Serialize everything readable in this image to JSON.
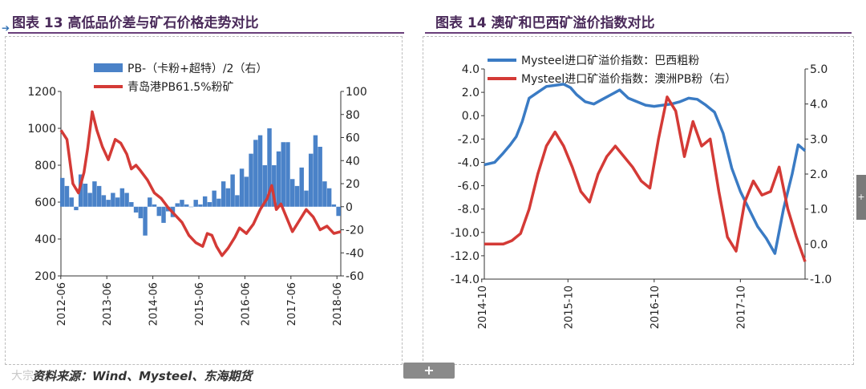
{
  "titles": {
    "left": "图表 13  高低品价差与矿石价格走势对比",
    "right": "图表 14  澳矿和巴西矿溢价指数对比"
  },
  "source": "资料来源：Wind、Mysteel、东海期货",
  "watermark": "大宗内参",
  "ui": {
    "add_tab": "+",
    "side_tab": "+"
  },
  "colors": {
    "blue": "#3a7bc4",
    "red": "#d43a36",
    "title": "#4a2a5a",
    "bar": "#4a82c8"
  },
  "chart_data": [
    {
      "type": "bar+line",
      "title": "高低品价差与矿石价格走势对比",
      "x_ticks": [
        "2012-06",
        "2013-06",
        "2014-06",
        "2015-06",
        "2016-06",
        "2017-06",
        "2018-06"
      ],
      "x_range": [
        2012.42,
        2018.5
      ],
      "y_left": {
        "min": 200,
        "max": 1200,
        "ticks": [
          200,
          400,
          600,
          800,
          1000,
          1200
        ]
      },
      "y_right": {
        "min": -60,
        "max": 100,
        "ticks": [
          -60,
          -40,
          -20,
          0,
          20,
          40,
          60,
          80,
          100
        ]
      },
      "legend": [
        "PB-（卡粉+超特）/2（右）",
        "青岛港PB61.5%粉矿"
      ],
      "series": [
        {
          "name": "PB-（卡粉+超特）/2（右）",
          "axis": "right",
          "type": "bar",
          "x": [
            2012.45,
            2012.55,
            2012.65,
            2012.75,
            2012.85,
            2012.95,
            2013.05,
            2013.15,
            2013.25,
            2013.35,
            2013.45,
            2013.55,
            2013.65,
            2013.75,
            2013.85,
            2013.95,
            2014.05,
            2014.15,
            2014.25,
            2014.35,
            2014.45,
            2014.55,
            2014.65,
            2014.75,
            2014.85,
            2014.95,
            2015.05,
            2015.15,
            2015.25,
            2015.35,
            2015.45,
            2015.55,
            2015.65,
            2015.75,
            2015.85,
            2015.95,
            2016.05,
            2016.15,
            2016.25,
            2016.35,
            2016.45,
            2016.55,
            2016.65,
            2016.75,
            2016.85,
            2016.95,
            2017.05,
            2017.15,
            2017.25,
            2017.35,
            2017.45,
            2017.55,
            2017.65,
            2017.75,
            2017.85,
            2017.95,
            2018.05,
            2018.15,
            2018.25,
            2018.35,
            2018.45
          ],
          "values": [
            25,
            18,
            8,
            -3,
            28,
            20,
            12,
            22,
            18,
            10,
            6,
            12,
            8,
            16,
            12,
            4,
            -5,
            -10,
            -25,
            8,
            2,
            -8,
            -14,
            -4,
            -9,
            3,
            6,
            2,
            0,
            6,
            2,
            9,
            4,
            14,
            7,
            22,
            16,
            28,
            10,
            33,
            26,
            46,
            58,
            62,
            36,
            68,
            36,
            48,
            56,
            56,
            24,
            18,
            34,
            14,
            46,
            62,
            52,
            22,
            16,
            2,
            -8
          ]
        },
        {
          "name": "青岛港PB61.5%粉矿",
          "axis": "left",
          "type": "line",
          "x": [
            2012.42,
            2012.55,
            2012.68,
            2012.8,
            2012.92,
            2013.0,
            2013.1,
            2013.2,
            2013.32,
            2013.45,
            2013.6,
            2013.72,
            2013.85,
            2013.95,
            2014.05,
            2014.15,
            2014.3,
            2014.45,
            2014.6,
            2014.75,
            2014.9,
            2015.05,
            2015.2,
            2015.35,
            2015.5,
            2015.6,
            2015.7,
            2015.8,
            2015.92,
            2016.05,
            2016.2,
            2016.3,
            2016.45,
            2016.6,
            2016.75,
            2016.9,
            2017.0,
            2017.1,
            2017.2,
            2017.3,
            2017.45,
            2017.6,
            2017.75,
            2017.9,
            2018.05,
            2018.2,
            2018.35,
            2018.5
          ],
          "values": [
            990,
            940,
            700,
            650,
            760,
            890,
            1090,
            990,
            900,
            830,
            940,
            920,
            860,
            780,
            800,
            770,
            720,
            650,
            620,
            570,
            530,
            490,
            420,
            380,
            360,
            430,
            420,
            360,
            310,
            350,
            410,
            460,
            430,
            480,
            560,
            620,
            690,
            560,
            590,
            530,
            440,
            500,
            560,
            520,
            450,
            470,
            430,
            440
          ]
        }
      ]
    },
    {
      "type": "line",
      "title": "澳矿和巴西矿溢价指数对比",
      "x_ticks": [
        "2014-10",
        "2015-10",
        "2016-10",
        "2017-10"
      ],
      "x_range": [
        2014.78,
        2018.5
      ],
      "y_left": {
        "min": -14,
        "max": 4,
        "ticks": [
          -14,
          -12,
          -10,
          -8,
          -6,
          -4,
          -2,
          0,
          2,
          4
        ]
      },
      "y_right": {
        "min": -1,
        "max": 5,
        "ticks": [
          -1,
          0,
          1,
          2,
          3,
          4,
          5
        ]
      },
      "legend": [
        "Mysteel进口矿溢价指数：巴西粗粉",
        "Mysteel进口矿溢价指数：澳洲PB粉（右）"
      ],
      "series": [
        {
          "name": "Mysteel进口矿溢价指数：巴西粗粉",
          "axis": "left",
          "x": [
            2014.78,
            2014.9,
            2015.0,
            2015.08,
            2015.15,
            2015.22,
            2015.3,
            2015.4,
            2015.5,
            2015.6,
            2015.7,
            2015.78,
            2015.85,
            2015.95,
            2016.05,
            2016.15,
            2016.25,
            2016.35,
            2016.45,
            2016.55,
            2016.65,
            2016.75,
            2016.85,
            2016.95,
            2017.05,
            2017.15,
            2017.25,
            2017.35,
            2017.45,
            2017.55,
            2017.65,
            2017.75,
            2017.85,
            2017.95,
            2018.05,
            2018.15,
            2018.25,
            2018.35,
            2018.42,
            2018.5
          ],
          "values": [
            -4.2,
            -4.0,
            -3.2,
            -2.5,
            -1.8,
            -0.5,
            1.5,
            2.0,
            2.5,
            2.6,
            2.7,
            2.4,
            1.8,
            1.2,
            1.0,
            1.4,
            1.8,
            2.2,
            1.5,
            1.2,
            0.9,
            0.8,
            0.9,
            1.0,
            1.2,
            1.5,
            1.4,
            0.9,
            0.3,
            -1.5,
            -4.5,
            -6.5,
            -8.0,
            -9.5,
            -10.5,
            -11.8,
            -8.0,
            -5.0,
            -2.5,
            -3.0
          ]
        },
        {
          "name": "Mysteel进口矿溢价指数：澳洲PB粉（右）",
          "axis": "right",
          "x": [
            2014.78,
            2014.9,
            2015.0,
            2015.1,
            2015.2,
            2015.3,
            2015.4,
            2015.5,
            2015.6,
            2015.7,
            2015.8,
            2015.9,
            2016.0,
            2016.1,
            2016.2,
            2016.3,
            2016.4,
            2016.5,
            2016.6,
            2016.7,
            2016.8,
            2016.9,
            2017.0,
            2017.1,
            2017.2,
            2017.3,
            2017.4,
            2017.5,
            2017.6,
            2017.7,
            2017.8,
            2017.9,
            2018.0,
            2018.1,
            2018.2,
            2018.3,
            2018.4,
            2018.5
          ],
          "values": [
            0.0,
            0.0,
            0.0,
            0.1,
            0.3,
            1.0,
            2.0,
            2.8,
            3.2,
            2.8,
            2.2,
            1.5,
            1.2,
            2.0,
            2.5,
            2.8,
            2.5,
            2.2,
            1.8,
            1.6,
            3.0,
            4.2,
            3.8,
            2.5,
            3.5,
            2.8,
            3.0,
            1.5,
            0.2,
            -0.2,
            1.2,
            1.8,
            1.4,
            1.5,
            2.2,
            1.0,
            0.2,
            -0.5
          ]
        }
      ]
    }
  ]
}
